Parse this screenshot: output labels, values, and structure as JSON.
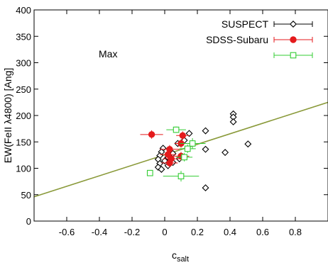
{
  "chart_data": {
    "type": "scatter",
    "title": "",
    "xlabel": "c",
    "xlabel_sub": "salt",
    "ylabel": "EW(FeII λ4800) [Ang]",
    "xlim": [
      -0.8,
      1.0
    ],
    "ylim": [
      0,
      400
    ],
    "xticks": [
      -0.6,
      -0.4,
      -0.2,
      0,
      0.2,
      0.4,
      0.6,
      0.8
    ],
    "xtick_labels": [
      "-0.6",
      "-0.4",
      "-0.2",
      "0",
      "0.2",
      "0.4",
      "0.6",
      "0.8"
    ],
    "yticks": [
      0,
      50,
      100,
      150,
      200,
      250,
      300,
      350,
      400
    ],
    "ytick_labels": [
      "0",
      "50",
      "100",
      "150",
      "200",
      "250",
      "300",
      "350",
      "400"
    ],
    "grid": false,
    "legend_position": "top-right",
    "annotation": "Max",
    "fit_line": {
      "x": [
        -0.8,
        1.0
      ],
      "y": [
        46,
        225
      ],
      "color": "#8a9a3a"
    },
    "series": [
      {
        "name": "SUSPECT",
        "color": "#000000",
        "marker": "open-diamond",
        "points": [
          {
            "x": 0.42,
            "y": 203,
            "xerr": 0.0,
            "yerr": 3
          },
          {
            "x": 0.42,
            "y": 197,
            "xerr": 0.0,
            "yerr": 3
          },
          {
            "x": 0.42,
            "y": 188,
            "xerr": 0.0,
            "yerr": 3
          },
          {
            "x": 0.51,
            "y": 146,
            "xerr": 0.0,
            "yerr": 3
          },
          {
            "x": 0.37,
            "y": 130,
            "xerr": 0.0,
            "yerr": 3
          },
          {
            "x": 0.25,
            "y": 171,
            "xerr": 0.0,
            "yerr": 3
          },
          {
            "x": 0.25,
            "y": 136,
            "xerr": 0.0,
            "yerr": 3
          },
          {
            "x": 0.25,
            "y": 63,
            "xerr": 0.0,
            "yerr": 3
          },
          {
            "x": 0.15,
            "y": 166,
            "xerr": 0.0,
            "yerr": 3
          },
          {
            "x": 0.12,
            "y": 153,
            "xerr": 0.0,
            "yerr": 3
          },
          {
            "x": 0.08,
            "y": 147,
            "xerr": 0.0,
            "yerr": 3
          },
          {
            "x": 0.05,
            "y": 128,
            "xerr": 0.0,
            "yerr": 3
          },
          {
            "x": 0.02,
            "y": 121,
            "xerr": 0.0,
            "yerr": 3
          },
          {
            "x": -0.01,
            "y": 138,
            "xerr": 0.0,
            "yerr": 3
          },
          {
            "x": -0.02,
            "y": 131,
            "xerr": 0.0,
            "yerr": 3
          },
          {
            "x": -0.03,
            "y": 124,
            "xerr": 0.0,
            "yerr": 3
          },
          {
            "x": -0.04,
            "y": 117,
            "xerr": 0.0,
            "yerr": 3
          },
          {
            "x": -0.03,
            "y": 109,
            "xerr": 0.0,
            "yerr": 3
          },
          {
            "x": -0.04,
            "y": 102,
            "xerr": 0.0,
            "yerr": 3
          },
          {
            "x": -0.02,
            "y": 98,
            "xerr": 0.0,
            "yerr": 3
          },
          {
            "x": 0.0,
            "y": 114,
            "xerr": 0.0,
            "yerr": 3
          },
          {
            "x": 0.02,
            "y": 105,
            "xerr": 0.0,
            "yerr": 3
          },
          {
            "x": 0.05,
            "y": 111,
            "xerr": 0.0,
            "yerr": 3
          },
          {
            "x": 0.09,
            "y": 118,
            "xerr": 0.0,
            "yerr": 3
          }
        ]
      },
      {
        "name": "SDSS-Subaru",
        "color": "#e41a1c",
        "marker": "filled-circle",
        "points": [
          {
            "x": -0.08,
            "y": 164,
            "xerr": 0.07,
            "yerr": 8
          },
          {
            "x": 0.11,
            "y": 162,
            "xerr": 0.04,
            "yerr": 8
          },
          {
            "x": 0.1,
            "y": 147,
            "xerr": 0.04,
            "yerr": 8
          },
          {
            "x": 0.03,
            "y": 136,
            "xerr": 0.06,
            "yerr": 8
          },
          {
            "x": 0.02,
            "y": 126,
            "xerr": 0.05,
            "yerr": 8
          },
          {
            "x": 0.04,
            "y": 118,
            "xerr": 0.05,
            "yerr": 8
          },
          {
            "x": 0.03,
            "y": 110,
            "xerr": 0.05,
            "yerr": 8
          },
          {
            "x": 0.1,
            "y": 123,
            "xerr": 0.05,
            "yerr": 8
          }
        ]
      },
      {
        "name": "",
        "color": "#33cc33",
        "marker": "open-square",
        "points": [
          {
            "x": 0.07,
            "y": 173,
            "xerr": 0.06,
            "yerr": 6
          },
          {
            "x": 0.17,
            "y": 147,
            "xerr": 0.08,
            "yerr": 10
          },
          {
            "x": 0.14,
            "y": 137,
            "xerr": 0.05,
            "yerr": 8
          },
          {
            "x": 0.1,
            "y": 85,
            "xerr": 0.11,
            "yerr": 10
          },
          {
            "x": -0.09,
            "y": 91,
            "xerr": 0.0,
            "yerr": 4
          },
          {
            "x": 0.12,
            "y": 121,
            "xerr": 0.05,
            "yerr": 8
          }
        ]
      }
    ]
  }
}
